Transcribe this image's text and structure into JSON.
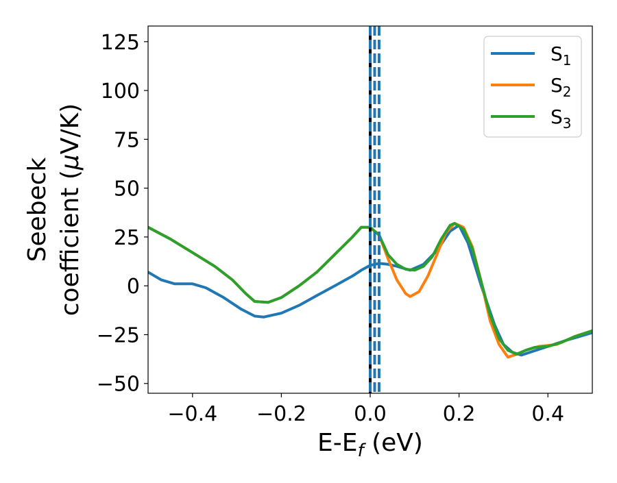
{
  "chart_data": {
    "type": "line",
    "xlabel": {
      "main": "E-E",
      "sub": "f",
      "unit": " (eV)"
    },
    "ylabel": {
      "line1": "Seebeck",
      "line2_pre": "coefficient  (",
      "mu": "μ",
      "line2_post": "V/K)"
    },
    "xlim": [
      -0.5,
      0.5
    ],
    "ylim": [
      -55,
      133
    ],
    "xticks": [
      -0.4,
      -0.2,
      0.0,
      0.2,
      0.4
    ],
    "xtick_labels": [
      "−0.4",
      "−0.2",
      "0.0",
      "0.2",
      "0.4"
    ],
    "yticks": [
      -50,
      -25,
      0,
      25,
      50,
      75,
      100,
      125
    ],
    "ytick_labels": [
      "−50",
      "−25",
      "0",
      "25",
      "50",
      "75",
      "100",
      "125"
    ],
    "legend_position": "top-right",
    "vlines": [
      {
        "x": 0.0,
        "color": "#000000",
        "style": "solid"
      },
      {
        "x": 0.0,
        "color": "#1f77b4",
        "style": "dashed"
      },
      {
        "x": 0.01,
        "color": "#1f77b4",
        "style": "dashed"
      },
      {
        "x": 0.02,
        "color": "#1f77b4",
        "style": "dashed"
      }
    ],
    "series": [
      {
        "name": "S",
        "sub": "1",
        "color": "#1f77b4",
        "points": [
          [
            -0.5,
            7
          ],
          [
            -0.47,
            3
          ],
          [
            -0.44,
            1
          ],
          [
            -0.4,
            1
          ],
          [
            -0.37,
            -1
          ],
          [
            -0.33,
            -6
          ],
          [
            -0.29,
            -12
          ],
          [
            -0.26,
            -15.5
          ],
          [
            -0.24,
            -16
          ],
          [
            -0.2,
            -14
          ],
          [
            -0.16,
            -10
          ],
          [
            -0.12,
            -5
          ],
          [
            -0.08,
            0
          ],
          [
            -0.04,
            5
          ],
          [
            -0.02,
            8
          ],
          [
            0.0,
            10.5
          ],
          [
            0.02,
            11.5
          ],
          [
            0.04,
            11
          ],
          [
            0.06,
            10
          ],
          [
            0.09,
            8
          ],
          [
            0.12,
            11
          ],
          [
            0.15,
            18
          ],
          [
            0.18,
            28
          ],
          [
            0.2,
            31
          ],
          [
            0.22,
            22
          ],
          [
            0.25,
            0
          ],
          [
            0.28,
            -20
          ],
          [
            0.3,
            -30
          ],
          [
            0.32,
            -34
          ],
          [
            0.34,
            -35.5
          ],
          [
            0.36,
            -34
          ],
          [
            0.4,
            -31
          ],
          [
            0.44,
            -28
          ],
          [
            0.47,
            -26
          ],
          [
            0.5,
            -24
          ]
        ]
      },
      {
        "name": "S",
        "sub": "2",
        "color": "#ff7f0e",
        "points": [
          [
            -0.5,
            30
          ],
          [
            -0.45,
            24
          ],
          [
            -0.4,
            17
          ],
          [
            -0.35,
            10
          ],
          [
            -0.31,
            3
          ],
          [
            -0.28,
            -4
          ],
          [
            -0.26,
            -8
          ],
          [
            -0.23,
            -8.5
          ],
          [
            -0.2,
            -6
          ],
          [
            -0.16,
            0
          ],
          [
            -0.12,
            7
          ],
          [
            -0.08,
            16
          ],
          [
            -0.04,
            25
          ],
          [
            -0.02,
            30
          ],
          [
            0.0,
            30
          ],
          [
            0.02,
            26
          ],
          [
            0.04,
            14
          ],
          [
            0.06,
            3
          ],
          [
            0.08,
            -4
          ],
          [
            0.09,
            -5.5
          ],
          [
            0.11,
            -3
          ],
          [
            0.13,
            5
          ],
          [
            0.15,
            16
          ],
          [
            0.17,
            27
          ],
          [
            0.19,
            32
          ],
          [
            0.21,
            30
          ],
          [
            0.23,
            20
          ],
          [
            0.25,
            2
          ],
          [
            0.27,
            -18
          ],
          [
            0.29,
            -30
          ],
          [
            0.31,
            -36.5
          ],
          [
            0.33,
            -35
          ],
          [
            0.35,
            -33
          ],
          [
            0.38,
            -31
          ],
          [
            0.42,
            -30
          ],
          [
            0.46,
            -26
          ],
          [
            0.5,
            -23
          ]
        ]
      },
      {
        "name": "S",
        "sub": "3",
        "color": "#2ca02c",
        "points": [
          [
            -0.5,
            30
          ],
          [
            -0.45,
            24
          ],
          [
            -0.4,
            17
          ],
          [
            -0.35,
            10
          ],
          [
            -0.31,
            3
          ],
          [
            -0.28,
            -4
          ],
          [
            -0.26,
            -8
          ],
          [
            -0.23,
            -8.5
          ],
          [
            -0.2,
            -6
          ],
          [
            -0.16,
            0
          ],
          [
            -0.12,
            7
          ],
          [
            -0.08,
            16
          ],
          [
            -0.04,
            25
          ],
          [
            -0.02,
            30
          ],
          [
            0.0,
            30
          ],
          [
            0.02,
            26
          ],
          [
            0.04,
            16
          ],
          [
            0.06,
            11
          ],
          [
            0.08,
            8.5
          ],
          [
            0.1,
            8
          ],
          [
            0.12,
            10
          ],
          [
            0.14,
            15
          ],
          [
            0.16,
            24
          ],
          [
            0.18,
            31
          ],
          [
            0.19,
            32
          ],
          [
            0.21,
            29
          ],
          [
            0.23,
            19
          ],
          [
            0.25,
            2
          ],
          [
            0.27,
            -15
          ],
          [
            0.29,
            -27
          ],
          [
            0.31,
            -33
          ],
          [
            0.33,
            -35
          ],
          [
            0.35,
            -33
          ],
          [
            0.37,
            -31.5
          ],
          [
            0.4,
            -31
          ],
          [
            0.43,
            -29
          ],
          [
            0.46,
            -26
          ],
          [
            0.5,
            -23
          ]
        ]
      }
    ]
  }
}
